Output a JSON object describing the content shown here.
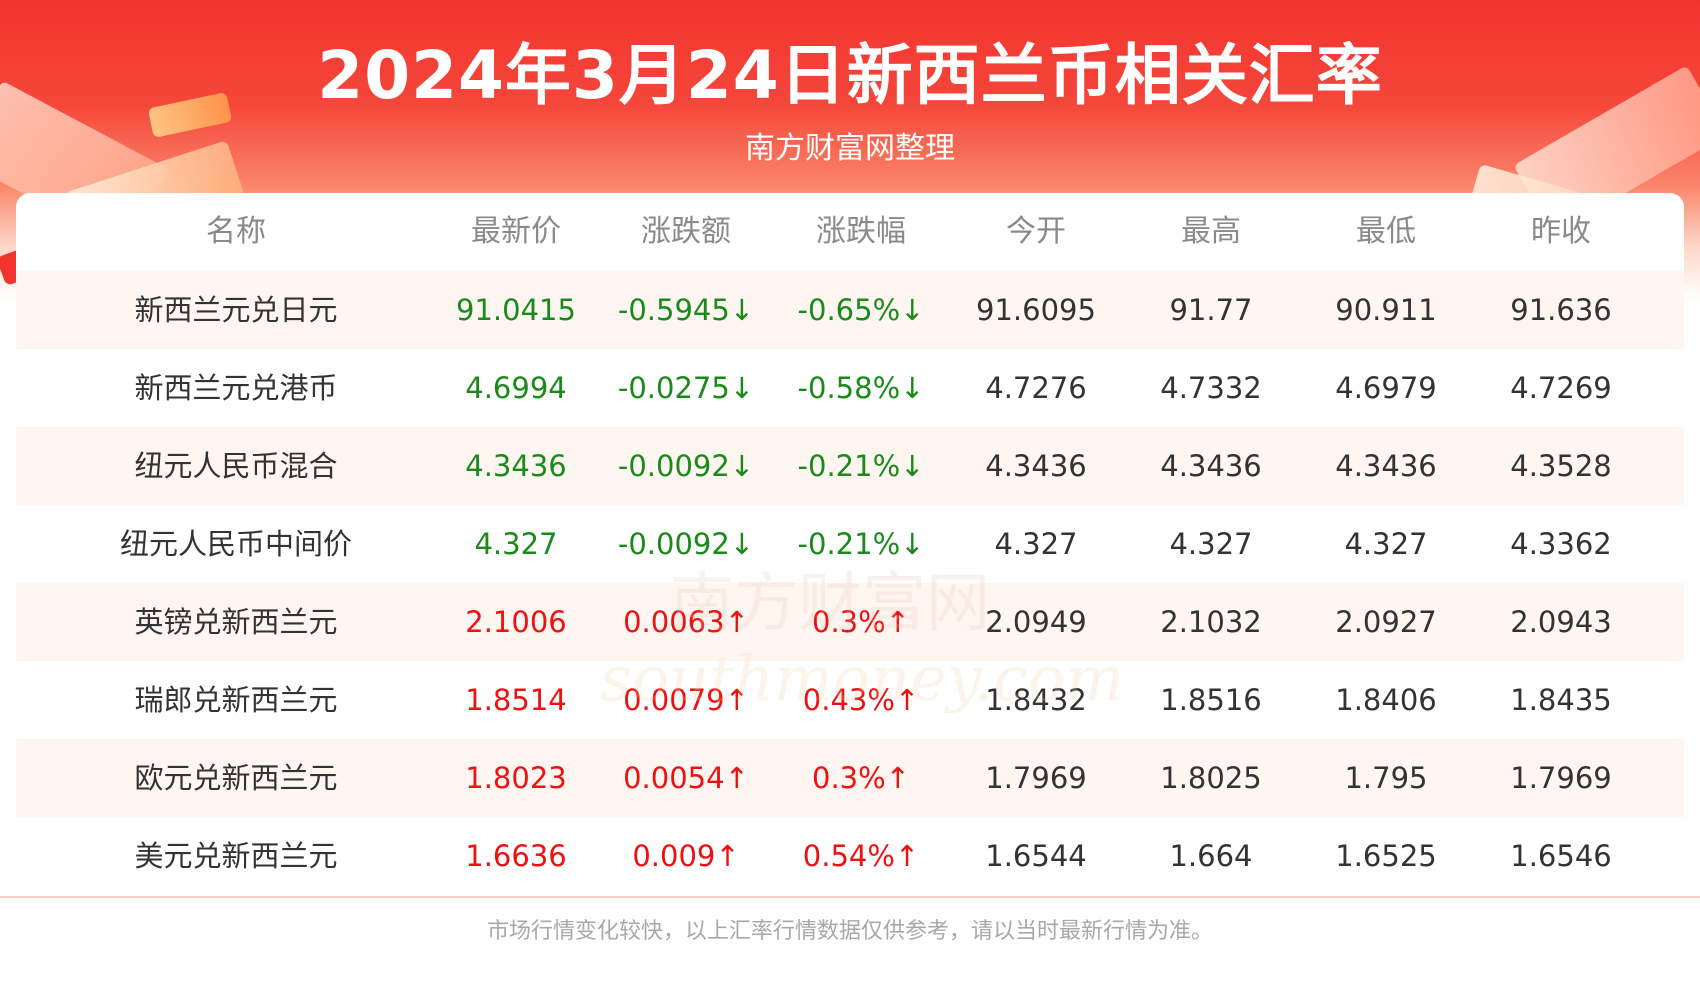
{
  "header": {
    "title": "2024年3月24日新西兰币相关汇率",
    "subtitle": "南方财富网整理"
  },
  "table": {
    "columns": [
      "名称",
      "最新价",
      "涨跌额",
      "涨跌幅",
      "今开",
      "最高",
      "最低",
      "昨收"
    ],
    "rows": [
      {
        "name": "新西兰元兑日元",
        "latest": "91.0415",
        "change": "-0.5945↓",
        "pct": "-0.65%↓",
        "open": "91.6095",
        "high": "91.77",
        "low": "90.911",
        "prev": "91.636",
        "trend": "down"
      },
      {
        "name": "新西兰元兑港币",
        "latest": "4.6994",
        "change": "-0.0275↓",
        "pct": "-0.58%↓",
        "open": "4.7276",
        "high": "4.7332",
        "low": "4.6979",
        "prev": "4.7269",
        "trend": "down"
      },
      {
        "name": "纽元人民币混合",
        "latest": "4.3436",
        "change": "-0.0092↓",
        "pct": "-0.21%↓",
        "open": "4.3436",
        "high": "4.3436",
        "low": "4.3436",
        "prev": "4.3528",
        "trend": "down"
      },
      {
        "name": "纽元人民币中间价",
        "latest": "4.327",
        "change": "-0.0092↓",
        "pct": "-0.21%↓",
        "open": "4.327",
        "high": "4.327",
        "low": "4.327",
        "prev": "4.3362",
        "trend": "down"
      },
      {
        "name": "英镑兑新西兰元",
        "latest": "2.1006",
        "change": "0.0063↑",
        "pct": "0.3%↑",
        "open": "2.0949",
        "high": "2.1032",
        "low": "2.0927",
        "prev": "2.0943",
        "trend": "up"
      },
      {
        "name": "瑞郎兑新西兰元",
        "latest": "1.8514",
        "change": "0.0079↑",
        "pct": "0.43%↑",
        "open": "1.8432",
        "high": "1.8516",
        "low": "1.8406",
        "prev": "1.8435",
        "trend": "up"
      },
      {
        "name": "欧元兑新西兰元",
        "latest": "1.8023",
        "change": "0.0054↑",
        "pct": "0.3%↑",
        "open": "1.7969",
        "high": "1.8025",
        "low": "1.795",
        "prev": "1.7969",
        "trend": "up"
      },
      {
        "name": "美元兑新西兰元",
        "latest": "1.6636",
        "change": "0.009↑",
        "pct": "0.54%↑",
        "open": "1.6544",
        "high": "1.664",
        "low": "1.6525",
        "prev": "1.6546",
        "trend": "up"
      }
    ]
  },
  "watermark": {
    "cn": "南方财富网",
    "en": "southmoney.com"
  },
  "footer": {
    "disclaimer": "市场行情变化较快，以上汇率行情数据仅供参考，请以当时最新行情为准。"
  },
  "colors": {
    "banner_red": "#f2342f",
    "up": "#ee1111",
    "down": "#1a8a1a",
    "row_alt": "#fff6f2"
  }
}
